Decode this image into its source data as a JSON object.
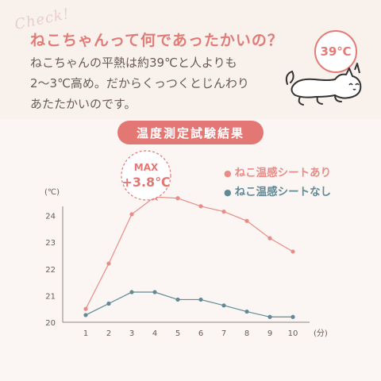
{
  "header": {
    "check_text": "Check!",
    "headline": "ねこちゃんって何であったかいの？",
    "body": "ねこちゃんの平熱は約39℃と人よりも\n2〜3℃高め。だからくっつくとじんわり\nあたたかいのです。",
    "temp_badge": "39℃"
  },
  "chart_data": {
    "type": "line",
    "title": "温度測定試験結果",
    "x": [
      1,
      2,
      3,
      4,
      5,
      6,
      7,
      8,
      9,
      10
    ],
    "x_unit": "(分)",
    "y_unit": "(℃)",
    "y_ticks": [
      20,
      21,
      22,
      23,
      24
    ],
    "ylim": [
      20,
      25
    ],
    "grid": false,
    "legend_position": "top-right",
    "series": [
      {
        "name": "ねこ温感シートあり",
        "color": "#e98b87",
        "values": [
          20.5,
          22.2,
          24.05,
          24.7,
          24.65,
          24.35,
          24.15,
          23.8,
          23.15,
          22.65
        ]
      },
      {
        "name": "ねこ温感シートなし",
        "color": "#5f8a96",
        "values": [
          20.27,
          20.7,
          21.13,
          21.13,
          20.85,
          20.85,
          20.63,
          20.4,
          20.2,
          20.2
        ]
      }
    ],
    "annotation": {
      "label": "MAX",
      "value": "+3.8℃",
      "color": "#e37774"
    }
  }
}
